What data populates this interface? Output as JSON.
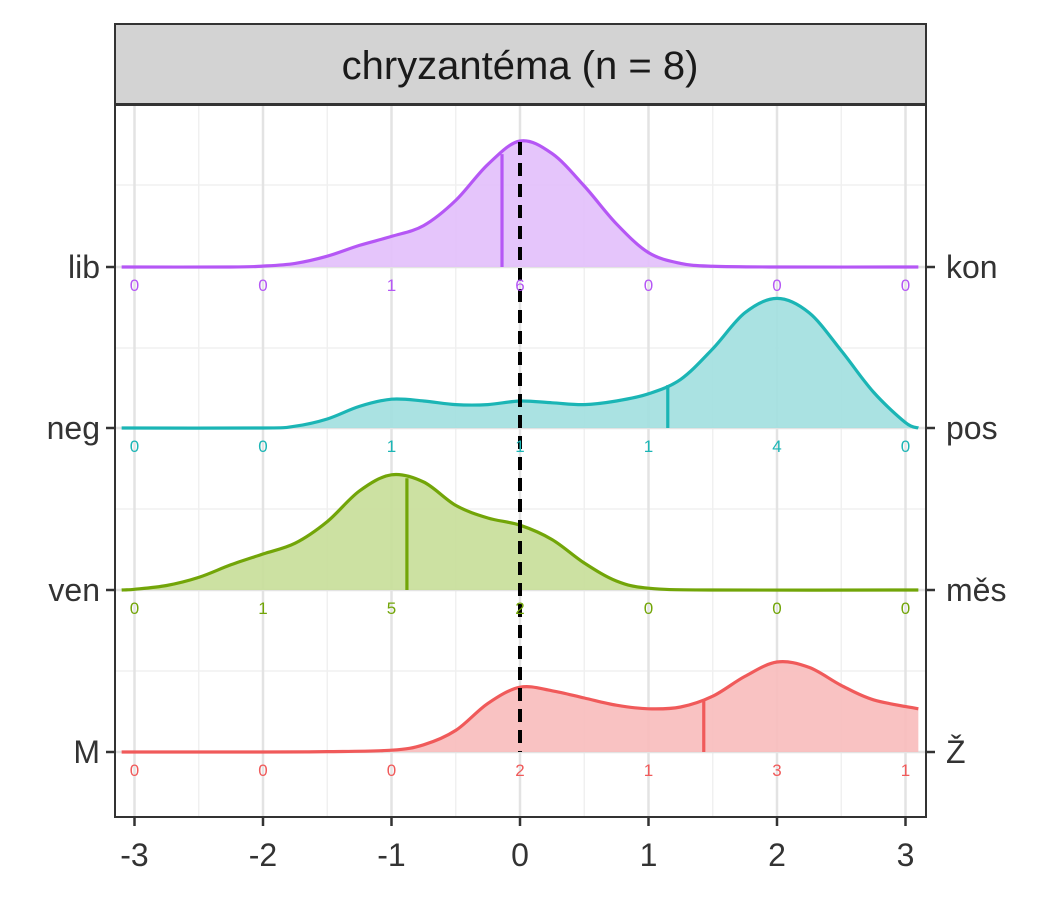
{
  "chart_data": {
    "type": "ridgeline-density",
    "panel_title": "chryzantéma (n = 8)",
    "x_ticks": [
      -3,
      -2,
      -1,
      0,
      1,
      2,
      3
    ],
    "x_tick_labels": [
      "-3",
      "-2",
      "-1",
      "0",
      "1",
      "2",
      "3"
    ],
    "xlim": [
      -3.1,
      3.1
    ],
    "vline_dashed_x": 0,
    "count_positions": [
      -3,
      -2,
      -1,
      0,
      1,
      2,
      3
    ],
    "series": [
      {
        "left_label": "M",
        "right_label": "Ž",
        "color": "#F05A5A",
        "fill": "#F8BDBD",
        "mean": 1.43,
        "counts": [
          0,
          0,
          0,
          2,
          1,
          3,
          1
        ],
        "density": [
          [
            -3.1,
            0
          ],
          [
            -2.0,
            0
          ],
          [
            -1.5,
            0.002
          ],
          [
            -1.0,
            0.01
          ],
          [
            -0.75,
            0.04
          ],
          [
            -0.5,
            0.12
          ],
          [
            -0.25,
            0.27
          ],
          [
            0,
            0.36
          ],
          [
            0.25,
            0.34
          ],
          [
            0.5,
            0.3
          ],
          [
            0.75,
            0.26
          ],
          [
            1.0,
            0.24
          ],
          [
            1.25,
            0.25
          ],
          [
            1.5,
            0.31
          ],
          [
            1.75,
            0.42
          ],
          [
            2.0,
            0.5
          ],
          [
            2.25,
            0.47
          ],
          [
            2.5,
            0.37
          ],
          [
            2.75,
            0.29
          ],
          [
            3.1,
            0.24
          ]
        ]
      },
      {
        "left_label": "ven",
        "right_label": "měs",
        "color": "#72A508",
        "fill": "#C8DE9A",
        "mean": -0.88,
        "counts": [
          0,
          1,
          5,
          2,
          0,
          0,
          0
        ],
        "density": [
          [
            -3.1,
            0
          ],
          [
            -3.0,
            0.004
          ],
          [
            -2.75,
            0.025
          ],
          [
            -2.5,
            0.07
          ],
          [
            -2.25,
            0.14
          ],
          [
            -2.0,
            0.2
          ],
          [
            -1.75,
            0.26
          ],
          [
            -1.5,
            0.38
          ],
          [
            -1.25,
            0.55
          ],
          [
            -1.0,
            0.64
          ],
          [
            -0.75,
            0.6
          ],
          [
            -0.5,
            0.47
          ],
          [
            -0.25,
            0.4
          ],
          [
            0,
            0.36
          ],
          [
            0.25,
            0.28
          ],
          [
            0.5,
            0.15
          ],
          [
            0.75,
            0.05
          ],
          [
            1.0,
            0.01
          ],
          [
            1.5,
            0
          ],
          [
            3.1,
            0
          ]
        ]
      },
      {
        "left_label": "neg",
        "right_label": "pos",
        "color": "#1BB5B5",
        "fill": "#A3DFDF",
        "mean": 1.15,
        "counts": [
          0,
          0,
          1,
          1,
          1,
          4,
          0
        ],
        "density": [
          [
            -3.1,
            0
          ],
          [
            -2.0,
            0
          ],
          [
            -1.75,
            0.01
          ],
          [
            -1.5,
            0.05
          ],
          [
            -1.25,
            0.12
          ],
          [
            -1.0,
            0.16
          ],
          [
            -0.75,
            0.15
          ],
          [
            -0.5,
            0.13
          ],
          [
            -0.25,
            0.13
          ],
          [
            0,
            0.15
          ],
          [
            0.25,
            0.14
          ],
          [
            0.5,
            0.13
          ],
          [
            0.75,
            0.15
          ],
          [
            1.0,
            0.19
          ],
          [
            1.25,
            0.27
          ],
          [
            1.5,
            0.44
          ],
          [
            1.75,
            0.64
          ],
          [
            2.0,
            0.72
          ],
          [
            2.25,
            0.64
          ],
          [
            2.5,
            0.43
          ],
          [
            2.75,
            0.2
          ],
          [
            3.0,
            0.03
          ],
          [
            3.1,
            0
          ]
        ]
      },
      {
        "left_label": "lib",
        "right_label": "kon",
        "color": "#B557F5",
        "fill": "#E3C0FB",
        "mean": -0.14,
        "counts": [
          0,
          0,
          1,
          6,
          0,
          0,
          0
        ],
        "density": [
          [
            -3.1,
            0
          ],
          [
            -2.25,
            0
          ],
          [
            -2.0,
            0.005
          ],
          [
            -1.75,
            0.02
          ],
          [
            -1.5,
            0.06
          ],
          [
            -1.25,
            0.12
          ],
          [
            -1.0,
            0.17
          ],
          [
            -0.75,
            0.23
          ],
          [
            -0.5,
            0.37
          ],
          [
            -0.25,
            0.57
          ],
          [
            0,
            0.7
          ],
          [
            0.25,
            0.63
          ],
          [
            0.5,
            0.45
          ],
          [
            0.75,
            0.24
          ],
          [
            1.0,
            0.08
          ],
          [
            1.25,
            0.02
          ],
          [
            1.5,
            0.004
          ],
          [
            2.0,
            0
          ],
          [
            3.1,
            0
          ]
        ]
      }
    ]
  }
}
